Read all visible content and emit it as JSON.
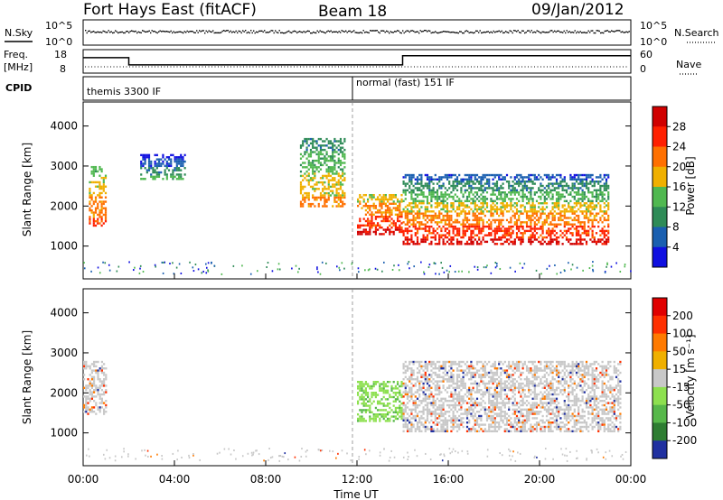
{
  "header": {
    "station": "Fort Hays East (fitACF)",
    "beam": "Beam 18",
    "date": "09/Jan/2012"
  },
  "noise_panel": {
    "left_label": "N.Sky",
    "right_label": "N.Search",
    "ytick_top": "10^5",
    "ytick_bottom": "10^0"
  },
  "freq_panel": {
    "left_label_1": "Freq.",
    "left_label_2": "[MHz]",
    "left_ticks": [
      "18",
      "8"
    ],
    "right_label": "Nave",
    "right_ticks": [
      "60",
      "0"
    ],
    "freq_steps": [
      {
        "from": "00:00",
        "to": "02:00",
        "value_mhz": 14.6
      },
      {
        "from": "02:00",
        "to": "14:00",
        "value_mhz": 11.5
      },
      {
        "from": "14:00",
        "to": "24:00",
        "value_mhz": 15.4
      }
    ]
  },
  "cpid_panel": {
    "label": "CPID",
    "modes": [
      {
        "start": "00:00",
        "label": "themis 3300 IF"
      },
      {
        "start": "12:00",
        "label": "normal (fast) 151 IF"
      }
    ]
  },
  "chart_data": [
    {
      "type": "heatmap",
      "panel": "power",
      "ylabel": "Slant Range [km]",
      "ylim": [
        180,
        4600
      ],
      "yticks": [
        1000,
        2000,
        3000,
        4000
      ],
      "xlim": [
        "00:00",
        "24:00"
      ],
      "colorbar": {
        "label": "Power [dB]",
        "ticks": [
          4,
          8,
          12,
          16,
          20,
          24,
          28
        ],
        "colors": [
          "#1010e0",
          "#1a5fb0",
          "#2e8b57",
          "#50b850",
          "#f0b000",
          "#ff7000",
          "#ff2000",
          "#d00000"
        ]
      },
      "regions": [
        {
          "time_from": "00:15",
          "time_to": "01:00",
          "range_km": [
            1500,
            3000
          ],
          "power_db": 22
        },
        {
          "time_from": "02:30",
          "time_to": "04:30",
          "range_km": [
            2700,
            3300
          ],
          "power_db": 8
        },
        {
          "time_from": "09:30",
          "time_to": "11:30",
          "range_km": [
            2000,
            3700
          ],
          "power_db": 18
        },
        {
          "time_from": "12:00",
          "time_to": "14:00",
          "range_km": [
            1300,
            2300
          ],
          "power_db": 26
        },
        {
          "time_from": "14:00",
          "time_to": "23:00",
          "range_km": [
            1050,
            2000
          ],
          "power_db": 28
        },
        {
          "time_from": "14:00",
          "time_to": "23:00",
          "range_km": [
            2000,
            2800
          ],
          "power_db": 14
        }
      ]
    },
    {
      "type": "heatmap",
      "panel": "velocity",
      "ylabel": "Slant Range [km]",
      "ylim": [
        180,
        4600
      ],
      "yticks": [
        1000,
        2000,
        3000,
        4000
      ],
      "xlim": [
        "00:00",
        "24:00"
      ],
      "xticks": [
        "00:00",
        "04:00",
        "08:00",
        "12:00",
        "16:00",
        "20:00",
        "00:00"
      ],
      "xlabel": "Time UT",
      "colorbar": {
        "label": "Velocity [m s⁻¹]",
        "ticks": [
          200,
          100,
          50,
          15,
          -15,
          -50,
          -100,
          -200
        ],
        "colors": [
          "#2030a0",
          "#2e7d32",
          "#57b84a",
          "#8de04f",
          "#c8c8c8",
          "#f0b000",
          "#ff7a00",
          "#ff3000",
          "#e00000"
        ]
      },
      "regions": [
        {
          "time_from": "00:00",
          "time_to": "01:00",
          "range_km": [
            1500,
            2800
          ],
          "velocity": 0
        },
        {
          "time_from": "12:00",
          "time_to": "14:00",
          "range_km": [
            1300,
            2300
          ],
          "velocity": 30
        },
        {
          "time_from": "14:00",
          "time_to": "23:30",
          "range_km": [
            1050,
            2800
          ],
          "velocity": 0
        }
      ]
    }
  ]
}
